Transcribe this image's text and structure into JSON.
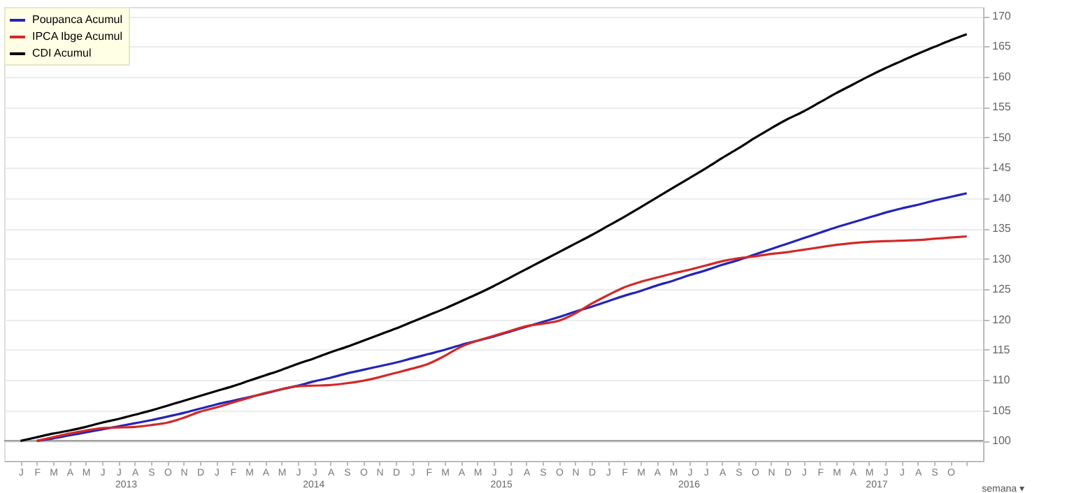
{
  "chart_data": {
    "type": "line",
    "categories": [
      "J",
      "F",
      "M",
      "A",
      "M",
      "J",
      "J",
      "A",
      "S",
      "O",
      "N",
      "D",
      "J",
      "F",
      "M",
      "A",
      "M",
      "J",
      "J",
      "A",
      "S",
      "O",
      "N",
      "D",
      "J",
      "F",
      "M",
      "A",
      "M",
      "J",
      "J",
      "A",
      "S",
      "O",
      "N",
      "D",
      "J",
      "F",
      "M",
      "A",
      "M",
      "J",
      "J",
      "A",
      "S",
      "O",
      "N",
      "D",
      "J",
      "F",
      "M",
      "A",
      "M",
      "J",
      "J",
      "A",
      "S",
      "O",
      null
    ],
    "series": [
      {
        "name": "Poupanca Acumul",
        "color": "#2424b8",
        "values": [
          null,
          100,
          100.4,
          100.9,
          101.4,
          101.9,
          102.4,
          102.9,
          103.4,
          104.0,
          104.6,
          105.3,
          106.0,
          106.6,
          107.2,
          107.8,
          108.5,
          109.1,
          109.8,
          110.4,
          111.1,
          111.7,
          112.3,
          112.9,
          113.6,
          114.3,
          115.0,
          115.8,
          116.5,
          117.2,
          118.0,
          118.8,
          119.6,
          120.4,
          121.3,
          122.1,
          123.0,
          123.9,
          124.7,
          125.6,
          126.4,
          127.3,
          128.1,
          129.0,
          129.8,
          130.7,
          131.6,
          132.5,
          133.4,
          134.3,
          135.2,
          136.0,
          136.8,
          137.6,
          138.3,
          138.9,
          139.6,
          140.2,
          140.8
        ]
      },
      {
        "name": "IPCA Ibge Acumul",
        "color": "#d42828",
        "values": [
          null,
          100,
          100.6,
          101.2,
          101.7,
          102.1,
          102.2,
          102.3,
          102.6,
          103.0,
          103.8,
          104.8,
          105.5,
          106.3,
          107.1,
          107.9,
          108.5,
          109.0,
          109.1,
          109.2,
          109.5,
          109.9,
          110.5,
          111.2,
          111.9,
          112.7,
          114.0,
          115.5,
          116.5,
          117.3,
          118.1,
          118.9,
          119.3,
          119.8,
          121.0,
          122.6,
          124.0,
          125.3,
          126.2,
          126.9,
          127.6,
          128.2,
          128.9,
          129.6,
          130.1,
          130.4,
          130.8,
          131.1,
          131.5,
          131.9,
          132.3,
          132.6,
          132.8,
          132.9,
          133.0,
          133.1,
          133.3,
          133.5,
          133.7
        ]
      },
      {
        "name": "CDI Acumul",
        "color": "#000000",
        "values": [
          100,
          100.6,
          101.2,
          101.7,
          102.3,
          103.0,
          103.6,
          104.3,
          105.0,
          105.8,
          106.6,
          107.4,
          108.2,
          109.0,
          109.9,
          110.8,
          111.7,
          112.7,
          113.6,
          114.6,
          115.5,
          116.5,
          117.5,
          118.5,
          119.6,
          120.7,
          121.8,
          123.0,
          124.2,
          125.5,
          126.9,
          128.3,
          129.7,
          131.1,
          132.5,
          133.9,
          135.4,
          136.9,
          138.5,
          140.1,
          141.7,
          143.3,
          144.9,
          146.6,
          148.2,
          149.9,
          151.5,
          153.0,
          154.3,
          155.8,
          157.3,
          158.7,
          160.1,
          161.4,
          162.6,
          163.8,
          164.9,
          166.0,
          167.0
        ]
      }
    ],
    "ylim": [
      96.7,
      171.5
    ],
    "yticks": [
      100,
      105,
      110,
      115,
      120,
      125,
      130,
      135,
      140,
      145,
      150,
      155,
      160,
      165,
      170
    ],
    "grid": "y",
    "legend": "top left",
    "ref_lines": [
      {
        "axis": "y",
        "value": 100,
        "color": "#a0a0a0"
      }
    ],
    "annotations": [
      "2013",
      "2014",
      "2015",
      "2016",
      "2017",
      "semana ▾"
    ]
  }
}
